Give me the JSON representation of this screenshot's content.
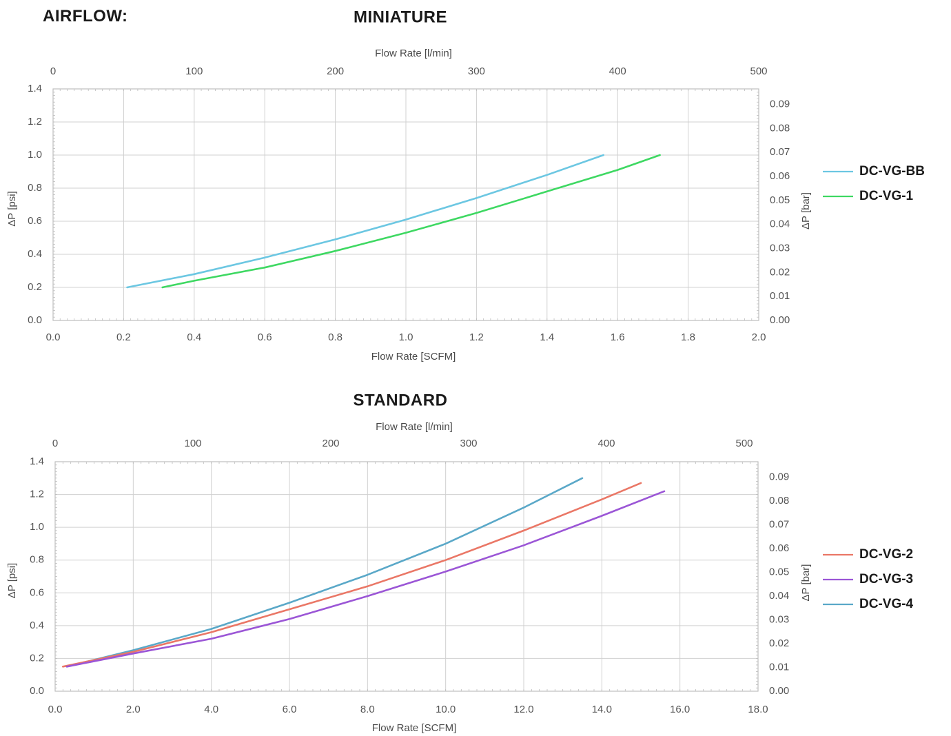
{
  "page": {
    "heading": "AIRFLOW:"
  },
  "colors": {
    "grid": "#d0d0d0",
    "frame": "#bdbdbd",
    "DC-VG-BB": "#6cc7e2",
    "DC-VG-1": "#3ed862",
    "DC-VG-2": "#ea7766",
    "DC-VG-3": "#9b56d6",
    "DC-VG-4": "#5aa8c8"
  },
  "chart_data": [
    {
      "id": "miniature",
      "type": "line",
      "title": "MINIATURE",
      "xlabel": "Flow Rate [SCFM]",
      "x2label": "Flow Rate [l/min]",
      "ylabel": "ΔP [psi]",
      "y2label": "ΔP [bar]",
      "xlim": [
        0,
        2.0
      ],
      "ylim": [
        0,
        1.4
      ],
      "x2lim": [
        0,
        500
      ],
      "y2lim": [
        0,
        0.0965
      ],
      "xticks": [
        "0.0",
        "0.2",
        "0.4",
        "0.6",
        "0.8",
        "1.0",
        "1.2",
        "1.4",
        "1.6",
        "1.8",
        "2.0"
      ],
      "yticks": [
        "0.0",
        "0.2",
        "0.4",
        "0.6",
        "0.8",
        "1.0",
        "1.2",
        "1.4"
      ],
      "x2ticks": [
        "0",
        "100",
        "200",
        "300",
        "400",
        "500"
      ],
      "y2ticks": [
        "0.00",
        "0.01",
        "0.02",
        "0.03",
        "0.04",
        "0.05",
        "0.06",
        "0.07",
        "0.08",
        "0.09"
      ],
      "grid": true,
      "legend_position": "right",
      "series": [
        {
          "name": "DC-VG-BB",
          "x": [
            0.21,
            0.4,
            0.6,
            0.8,
            1.0,
            1.2,
            1.4,
            1.56
          ],
          "y": [
            0.2,
            0.28,
            0.38,
            0.49,
            0.61,
            0.74,
            0.88,
            1.0
          ]
        },
        {
          "name": "DC-VG-1",
          "x": [
            0.31,
            0.4,
            0.6,
            0.8,
            1.0,
            1.2,
            1.4,
            1.6,
            1.72
          ],
          "y": [
            0.2,
            0.24,
            0.32,
            0.42,
            0.53,
            0.65,
            0.78,
            0.91,
            1.0
          ]
        }
      ]
    },
    {
      "id": "standard",
      "type": "line",
      "title": "STANDARD",
      "xlabel": "Flow Rate [SCFM]",
      "x2label": "Flow Rate [l/min]",
      "ylabel": "ΔP [psi]",
      "y2label": "ΔP [bar]",
      "xlim": [
        0,
        18.0
      ],
      "ylim": [
        0,
        1.4
      ],
      "x2lim": [
        0,
        510
      ],
      "y2lim": [
        0,
        0.0965
      ],
      "xticks": [
        "0.0",
        "2.0",
        "4.0",
        "6.0",
        "8.0",
        "10.0",
        "12.0",
        "14.0",
        "16.0",
        "18.0"
      ],
      "yticks": [
        "0.0",
        "0.2",
        "0.4",
        "0.6",
        "0.8",
        "1.0",
        "1.2",
        "1.4"
      ],
      "x2ticks": [
        "0",
        "100",
        "200",
        "300",
        "400",
        "500"
      ],
      "y2ticks": [
        "0.00",
        "0.01",
        "0.02",
        "0.03",
        "0.04",
        "0.05",
        "0.06",
        "0.07",
        "0.08",
        "0.09"
      ],
      "grid": true,
      "legend_position": "right",
      "series": [
        {
          "name": "DC-VG-2",
          "x": [
            0.2,
            2.0,
            4.0,
            6.0,
            8.0,
            10.0,
            12.0,
            14.0,
            15.0
          ],
          "y": [
            0.15,
            0.24,
            0.36,
            0.5,
            0.64,
            0.8,
            0.98,
            1.17,
            1.27
          ]
        },
        {
          "name": "DC-VG-3",
          "x": [
            0.3,
            2.0,
            4.0,
            6.0,
            8.0,
            10.0,
            12.0,
            14.0,
            15.6
          ],
          "y": [
            0.15,
            0.23,
            0.32,
            0.44,
            0.58,
            0.73,
            0.89,
            1.07,
            1.22
          ]
        },
        {
          "name": "DC-VG-4",
          "x": [
            0.3,
            2.0,
            4.0,
            6.0,
            8.0,
            10.0,
            12.0,
            13.5
          ],
          "y": [
            0.15,
            0.25,
            0.38,
            0.54,
            0.71,
            0.9,
            1.12,
            1.3
          ]
        }
      ],
      "draw_order": [
        "DC-VG-4",
        "DC-VG-2",
        "DC-VG-3"
      ]
    }
  ]
}
